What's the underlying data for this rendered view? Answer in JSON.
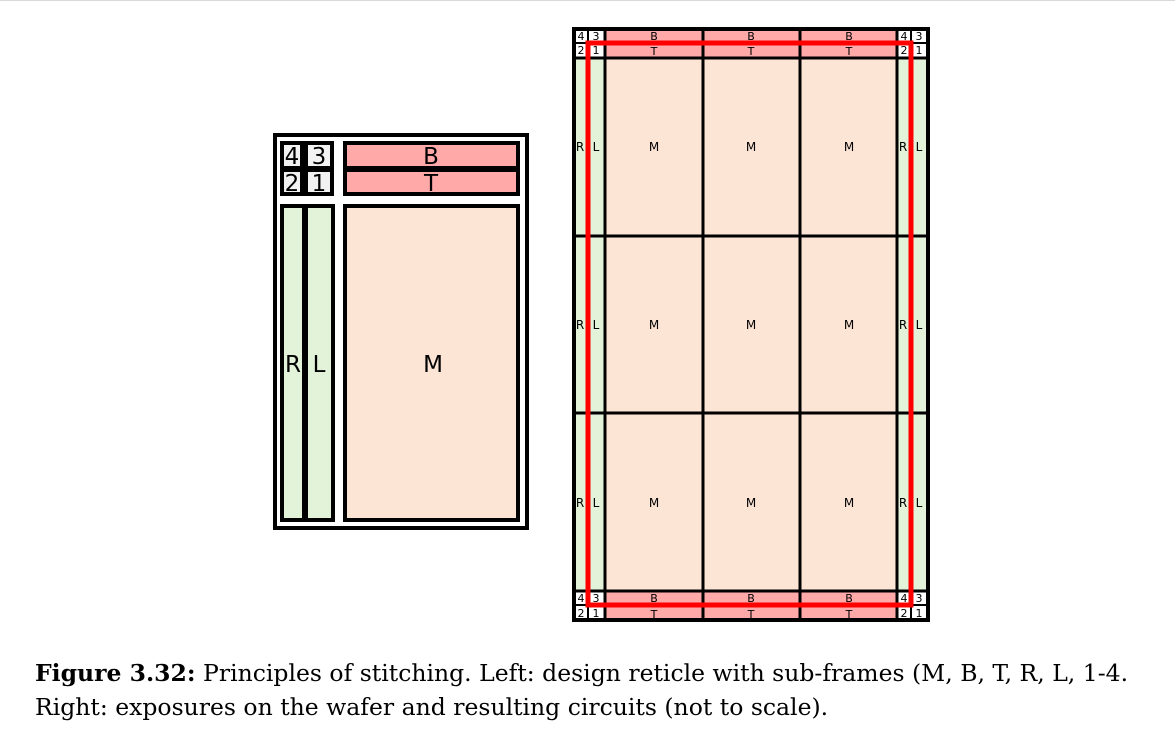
{
  "colors": {
    "stroke": "#000000",
    "main_fill": "#fde5d6",
    "bt_fill": "#ffa9a9",
    "rl_fill": "#e2f3da",
    "corner_fill": "#f2f2f2",
    "circuit_outline": "#ff0000"
  },
  "reticle": {
    "labels": {
      "c4": "4",
      "c3": "3",
      "c2": "2",
      "c1": "1",
      "B": "B",
      "T": "T",
      "R": "R",
      "L": "L",
      "M": "M"
    }
  },
  "wafer": {
    "labels": {
      "c4": "4",
      "c3": "3",
      "c2": "2",
      "c1": "1",
      "B": "B",
      "T": "T",
      "R": "R",
      "L": "L",
      "M": "M"
    },
    "grid_rows": 3,
    "grid_cols": 3
  },
  "caption": {
    "label": "Figure 3.32:",
    "line1": "Principles of stitching. Left: design reticle with sub-frames (M, B, T, R, L, 1-4.",
    "line2": "Right: exposures on the wafer and resulting circuits (not to scale)."
  }
}
